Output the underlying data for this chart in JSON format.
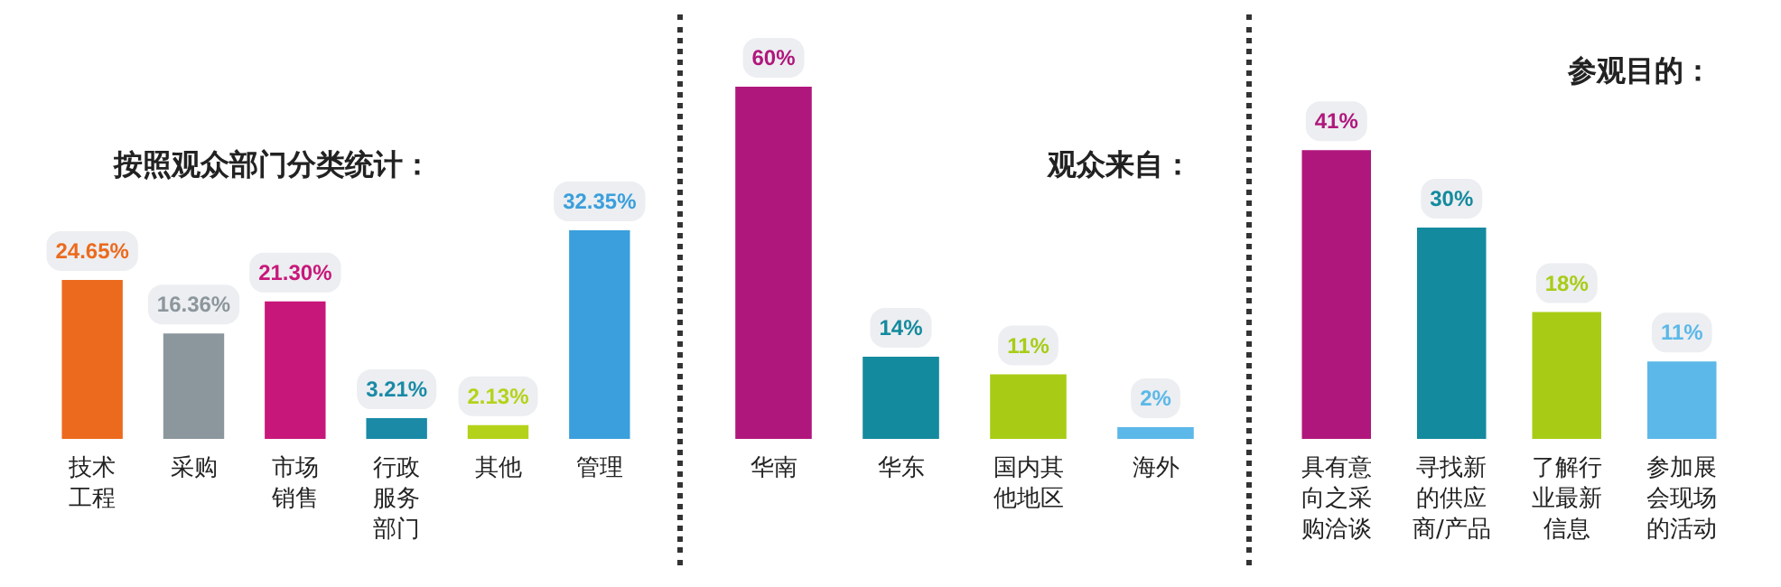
{
  "chart_data": [
    {
      "type": "bar",
      "title": "按照观众部门分类统计：",
      "categories": [
        "技术工程",
        "采购",
        "市场销售",
        "行政服务部门",
        "其他",
        "管理"
      ],
      "values": [
        24.65,
        16.36,
        21.3,
        3.21,
        2.13,
        32.35
      ],
      "colors": [
        "#ec6a1e",
        "#8c969d",
        "#c8177a",
        "#1a8aa6",
        "#b4d21a",
        "#3a9fdc"
      ],
      "value_labels": [
        "24.65%",
        "16.36%",
        "21.30%",
        "3.21%",
        "2.13%",
        "32.35%"
      ]
    },
    {
      "type": "bar",
      "title": "观众来自：",
      "categories": [
        "华南",
        "华东",
        "国内其他地区",
        "海外"
      ],
      "values": [
        60,
        14,
        11,
        2
      ],
      "colors": [
        "#b0177c",
        "#148a9e",
        "#a8cc16",
        "#5cb8e8"
      ],
      "value_labels": [
        "60%",
        "14%",
        "11%",
        "2%"
      ]
    },
    {
      "type": "bar",
      "title": "参观目的：",
      "categories": [
        "具有意向之采购洽谈",
        "寻找新的供应商/产品",
        "了解行业最新信息",
        "参加展会现场的活动"
      ],
      "values": [
        41,
        30,
        18,
        11
      ],
      "colors": [
        "#b0177c",
        "#148a9e",
        "#a8cc16",
        "#5cb8e8"
      ],
      "value_labels": [
        "41%",
        "30%",
        "18%",
        "11%"
      ]
    }
  ]
}
